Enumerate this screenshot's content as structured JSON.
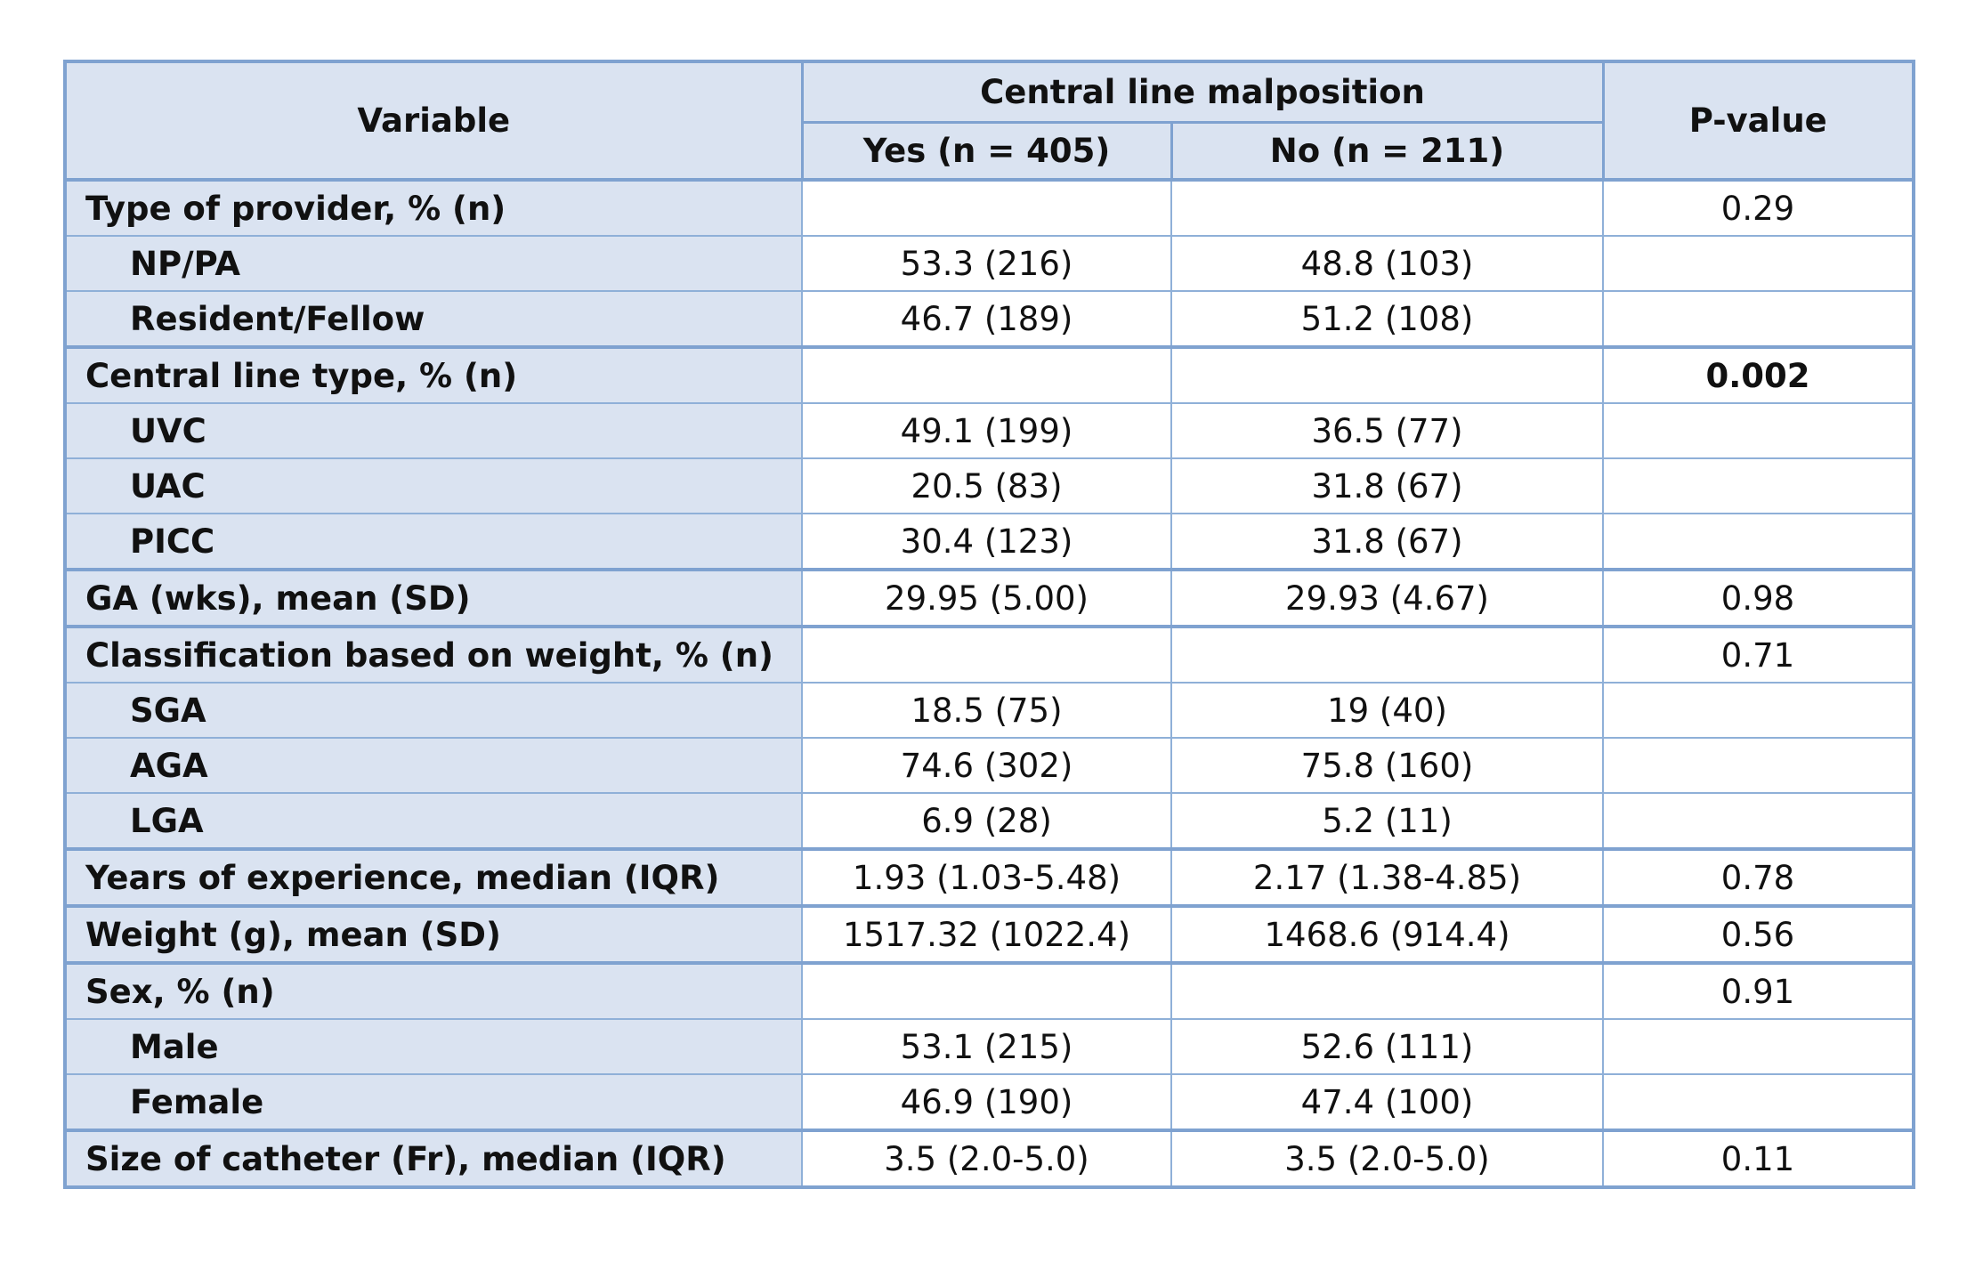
{
  "header": {
    "variable": "Variable",
    "group": "Central line malposition",
    "yes": "Yes (n = 405)",
    "no": "No (n = 211)",
    "pvalue": "P-value"
  },
  "rows": [
    {
      "label": "Type of provider, % (n)",
      "sub": false,
      "first": true,
      "yes": "",
      "no": "",
      "p": "0.29",
      "bold_p": false
    },
    {
      "label": "NP/PA",
      "sub": true,
      "first": false,
      "yes": "53.3 (216)",
      "no": "48.8 (103)",
      "p": "",
      "bold_p": false
    },
    {
      "label": "Resident/Fellow",
      "sub": true,
      "first": false,
      "yes": "46.7 (189)",
      "no": "51.2 (108)",
      "p": "",
      "bold_p": false
    },
    {
      "label": "Central line type, % (n)",
      "sub": false,
      "first": true,
      "yes": "",
      "no": "",
      "p": "0.002",
      "bold_p": true
    },
    {
      "label": "UVC",
      "sub": true,
      "first": false,
      "yes": "49.1 (199)",
      "no": "36.5 (77)",
      "p": "",
      "bold_p": false
    },
    {
      "label": "UAC",
      "sub": true,
      "first": false,
      "yes": "20.5 (83)",
      "no": "31.8 (67)",
      "p": "",
      "bold_p": false
    },
    {
      "label": "PICC",
      "sub": true,
      "first": false,
      "yes": "30.4 (123)",
      "no": "31.8 (67)",
      "p": "",
      "bold_p": false
    },
    {
      "label": "GA (wks), mean (SD)",
      "sub": false,
      "first": true,
      "yes": "29.95 (5.00)",
      "no": "29.93 (4.67)",
      "p": "0.98",
      "bold_p": false
    },
    {
      "label": "Classification based on weight, % (n)",
      "sub": false,
      "first": true,
      "yes": "",
      "no": "",
      "p": "0.71",
      "bold_p": false
    },
    {
      "label": "SGA",
      "sub": true,
      "first": false,
      "yes": "18.5 (75)",
      "no": "19 (40)",
      "p": "",
      "bold_p": false
    },
    {
      "label": "AGA",
      "sub": true,
      "first": false,
      "yes": "74.6 (302)",
      "no": "75.8 (160)",
      "p": "",
      "bold_p": false
    },
    {
      "label": "LGA",
      "sub": true,
      "first": false,
      "yes": "6.9 (28)",
      "no": "5.2 (11)",
      "p": "",
      "bold_p": false
    },
    {
      "label": "Years of experience, median (IQR)",
      "sub": false,
      "first": true,
      "yes": "1.93 (1.03-5.48)",
      "no": "2.17 (1.38-4.85)",
      "p": "0.78",
      "bold_p": false
    },
    {
      "label": "Weight (g), mean (SD)",
      "sub": false,
      "first": true,
      "yes": "1517.32 (1022.4)",
      "no": "1468.6 (914.4)",
      "p": "0.56",
      "bold_p": false
    },
    {
      "label": "Sex, % (n)",
      "sub": false,
      "first": true,
      "yes": "",
      "no": "",
      "p": "0.91",
      "bold_p": false
    },
    {
      "label": "Male",
      "sub": true,
      "first": false,
      "yes": "53.1 (215)",
      "no": "52.6 (111)",
      "p": "",
      "bold_p": false
    },
    {
      "label": "Female",
      "sub": true,
      "first": false,
      "yes": "46.9 (190)",
      "no": "47.4 (100)",
      "p": "",
      "bold_p": false
    },
    {
      "label": "Size of catheter (Fr), median (IQR)",
      "sub": false,
      "first": true,
      "yes": "3.5 (2.0-5.0)",
      "no": "3.5 (2.0-5.0)",
      "p": "0.11",
      "bold_p": false
    }
  ]
}
